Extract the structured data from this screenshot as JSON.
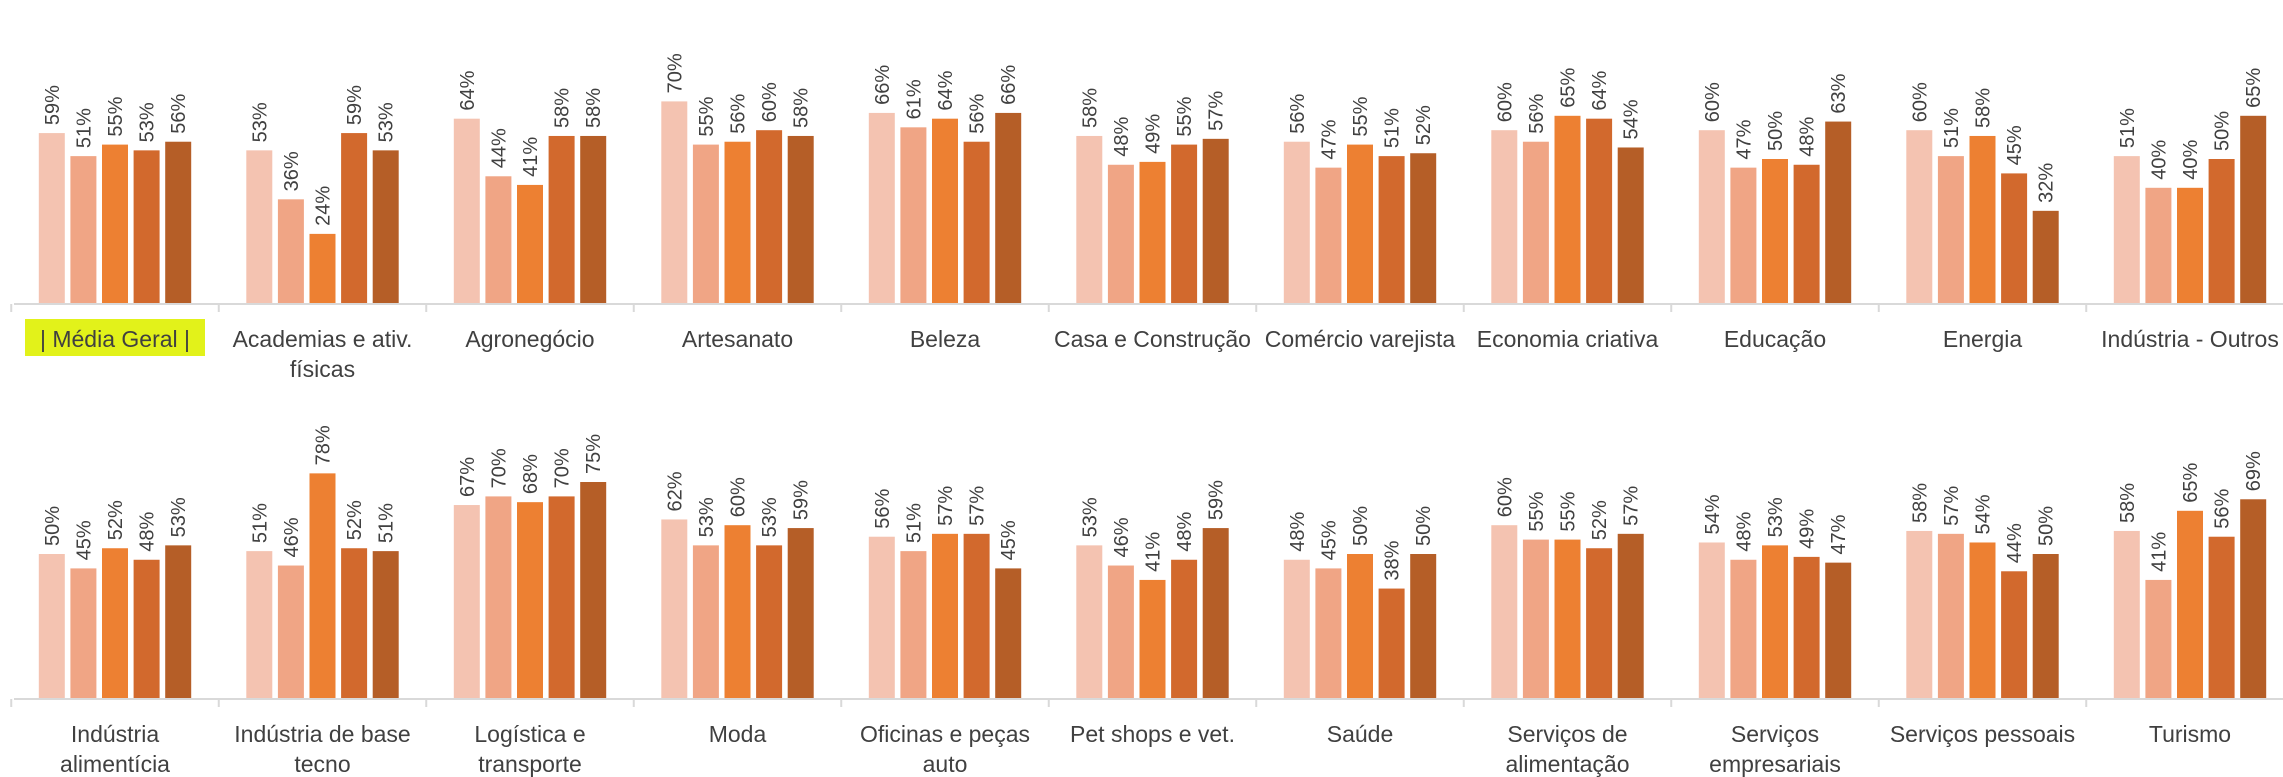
{
  "chart_data": {
    "type": "bar",
    "series_colors": [
      "#f4c3b1",
      "#f0a585",
      "#ed8032",
      "#d2692d",
      "#b55e27"
    ],
    "highlight_color": "#e2f21a",
    "rows": [
      {
        "groups": [
          {
            "label": "| Média Geral |",
            "highlight": true,
            "values": [
              59,
              51,
              55,
              53,
              56
            ]
          },
          {
            "label": "Academias e ativ. físicas",
            "values": [
              53,
              36,
              24,
              59,
              53
            ]
          },
          {
            "label": "Agronegócio",
            "values": [
              64,
              44,
              41,
              58,
              58
            ]
          },
          {
            "label": "Artesanato",
            "values": [
              70,
              55,
              56,
              60,
              58
            ]
          },
          {
            "label": "Beleza",
            "values": [
              66,
              61,
              64,
              56,
              66
            ]
          },
          {
            "label": "Casa e Construção",
            "values": [
              58,
              48,
              49,
              55,
              57
            ]
          },
          {
            "label": "Comércio varejista",
            "values": [
              56,
              47,
              55,
              51,
              52
            ]
          },
          {
            "label": "Economia criativa",
            "values": [
              60,
              56,
              65,
              64,
              54
            ]
          },
          {
            "label": "Educação",
            "values": [
              60,
              47,
              50,
              48,
              63
            ]
          },
          {
            "label": "Energia",
            "values": [
              60,
              51,
              58,
              45,
              32
            ]
          },
          {
            "label": "Indústria - Outros",
            "values": [
              51,
              40,
              40,
              50,
              65
            ]
          }
        ]
      },
      {
        "groups": [
          {
            "label": "Indústria alimentícia",
            "values": [
              50,
              45,
              52,
              48,
              53
            ]
          },
          {
            "label": "Indústria de base tecno",
            "values": [
              51,
              46,
              78,
              52,
              51
            ]
          },
          {
            "label": "Logística e transporte",
            "values": [
              67,
              70,
              68,
              70,
              75
            ]
          },
          {
            "label": "Moda",
            "values": [
              62,
              53,
              60,
              53,
              59
            ]
          },
          {
            "label": "Oficinas e peças auto",
            "values": [
              56,
              51,
              57,
              57,
              45
            ]
          },
          {
            "label": "Pet shops e vet.",
            "values": [
              53,
              46,
              41,
              48,
              59
            ]
          },
          {
            "label": "Saúde",
            "values": [
              48,
              45,
              50,
              38,
              50
            ]
          },
          {
            "label": "Serviços de alimentação",
            "values": [
              60,
              55,
              55,
              52,
              57
            ]
          },
          {
            "label": "Serviços empresariais",
            "values": [
              54,
              48,
              53,
              49,
              47
            ]
          },
          {
            "label": "Serviços pessoais",
            "values": [
              58,
              57,
              54,
              44,
              50
            ]
          },
          {
            "label": "Turismo",
            "values": [
              58,
              41,
              65,
              56,
              69
            ]
          }
        ]
      }
    ]
  }
}
